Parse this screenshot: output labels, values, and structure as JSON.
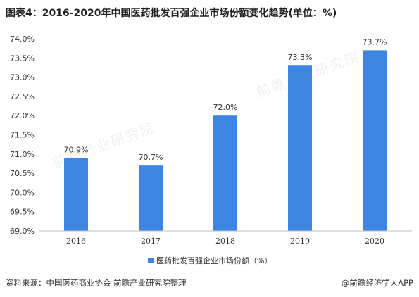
{
  "title": "图表4：2016-2020年中国医药批发百强企业市场份额变化趋势(单位：%)",
  "source": "资料来源：中国医药商业协会 前瞻产业研究院整理",
  "brand": "@前瞻经济学人APP",
  "watermark": "前瞻产业研究院",
  "chart_data": {
    "type": "bar",
    "categories": [
      "2016",
      "2017",
      "2018",
      "2019",
      "2020"
    ],
    "series": [
      {
        "name": "医药批发百强企业市场份额（%）",
        "values": [
          70.9,
          70.7,
          72.0,
          73.3,
          73.7
        ]
      }
    ],
    "data_labels": [
      "70.9%",
      "70.7%",
      "72.0%",
      "73.3%",
      "73.7%"
    ],
    "yticks": [
      "69.0%",
      "69.5%",
      "70.0%",
      "70.5%",
      "71.0%",
      "71.5%",
      "72.0%",
      "72.5%",
      "73.0%",
      "73.5%",
      "74.0%"
    ],
    "ylim": [
      69.0,
      74.0
    ],
    "bar_color": "#3d86e2",
    "legend_position": "bottom"
  }
}
